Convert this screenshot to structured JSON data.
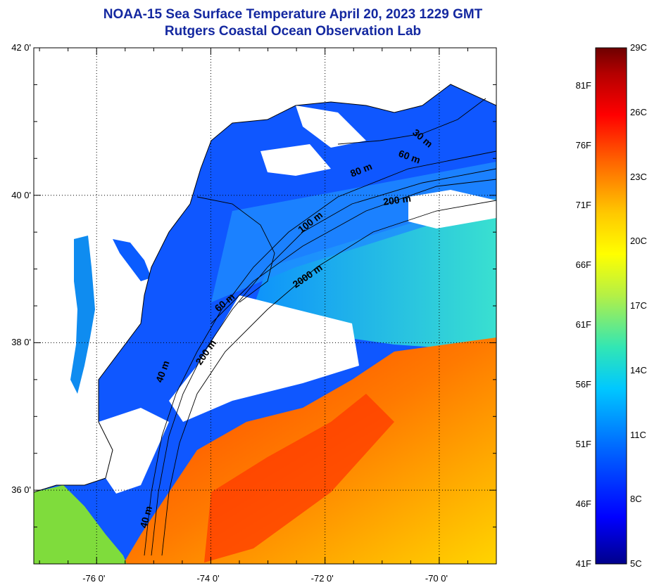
{
  "title": {
    "line1": "NOAA-15 Sea Surface Temperature April 20, 2023 1229 GMT",
    "line2": "Rutgers Coastal Ocean Observation Lab"
  },
  "map": {
    "lat_labels": [
      "42 0'",
      "40 0'",
      "38 0'",
      "36 0'"
    ],
    "lon_labels": [
      "-76 0'",
      "-74 0'",
      "-72 0'",
      "-70 0'"
    ],
    "lat_range": [
      35.0,
      42.0
    ],
    "lon_range": [
      -77.1,
      -69.0
    ],
    "lat_gridlines": [
      42,
      40,
      38,
      36
    ],
    "lon_gridlines": [
      -76,
      -74,
      -72,
      -70
    ],
    "contour_labels": [
      "30 m",
      "60 m",
      "80 m",
      "200 m",
      "100 m",
      "2000 m",
      "60 m",
      "200 m",
      "40 m",
      "40 m"
    ],
    "land_color": "#ffffff",
    "cloud_color": "#ffffff"
  },
  "colorbar": {
    "fahrenheit_labels": [
      "81F",
      "76F",
      "71F",
      "66F",
      "61F",
      "56F",
      "51F",
      "46F",
      "41F"
    ],
    "celsius_labels": [
      "29C",
      "26C",
      "23C",
      "20C",
      "17C",
      "14C",
      "11C",
      "8C",
      "5C"
    ],
    "range_c": [
      5,
      29
    ],
    "colors": [
      "#00008b",
      "#0000ff",
      "#0064ff",
      "#00c8ff",
      "#32e6b4",
      "#b4f046",
      "#ffff00",
      "#ffc800",
      "#ff6400",
      "#ff0000",
      "#b40000",
      "#6e0000"
    ]
  }
}
